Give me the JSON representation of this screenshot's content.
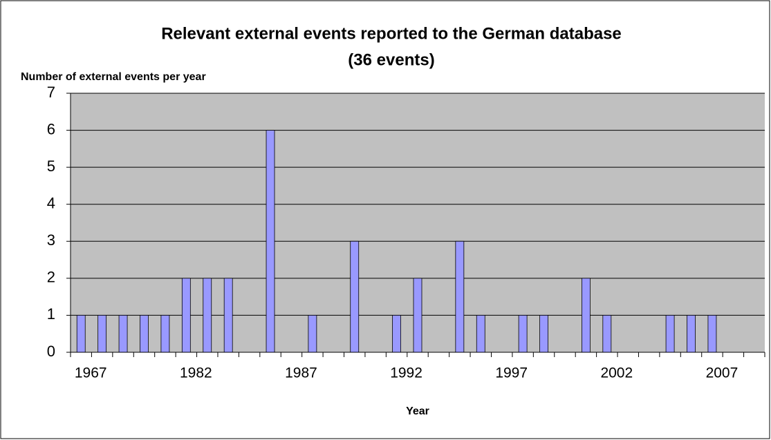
{
  "chart_data": {
    "type": "bar",
    "title": "Relevant external events reported to the German database",
    "subtitle": "(36 events)",
    "y_label": "Number of external events per year",
    "x_label": "Year",
    "categories": [
      "1967",
      null,
      null,
      null,
      null,
      "1982",
      null,
      null,
      null,
      null,
      "1987",
      null,
      null,
      null,
      null,
      "1992",
      null,
      null,
      null,
      null,
      "1997",
      null,
      null,
      null,
      null,
      "2002",
      null,
      null,
      null,
      null,
      "2007",
      null,
      null
    ],
    "values": [
      1,
      1,
      1,
      1,
      1,
      2,
      2,
      2,
      0,
      6,
      0,
      1,
      0,
      3,
      0,
      1,
      2,
      0,
      3,
      1,
      0,
      1,
      1,
      0,
      2,
      1,
      0,
      0,
      1,
      1,
      1,
      0,
      0
    ],
    "color": "#9999ff",
    "background": "#c0c0c0",
    "ylim": [
      0,
      7
    ],
    "yticks": [
      0,
      1,
      2,
      3,
      4,
      5,
      6,
      7
    ],
    "grid": true
  }
}
